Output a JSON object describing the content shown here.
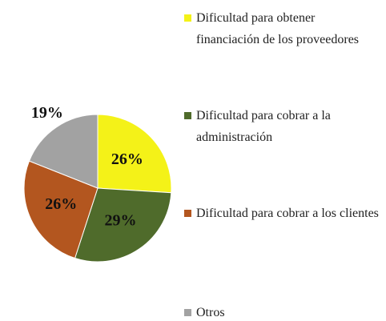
{
  "chart_data": {
    "type": "pie",
    "categories": [
      "Dificultad para obtener financiación de los proveedores",
      "Dificultad para cobrar a la administración",
      "Dificultad para cobrar a los clientes",
      "Otros"
    ],
    "values": [
      26,
      29,
      26,
      19
    ],
    "value_labels": [
      "26%",
      "29%",
      "26%",
      "19%"
    ],
    "colors": [
      "#f4f218",
      "#4f6b2b",
      "#b3561f",
      "#a2a2a2"
    ]
  }
}
